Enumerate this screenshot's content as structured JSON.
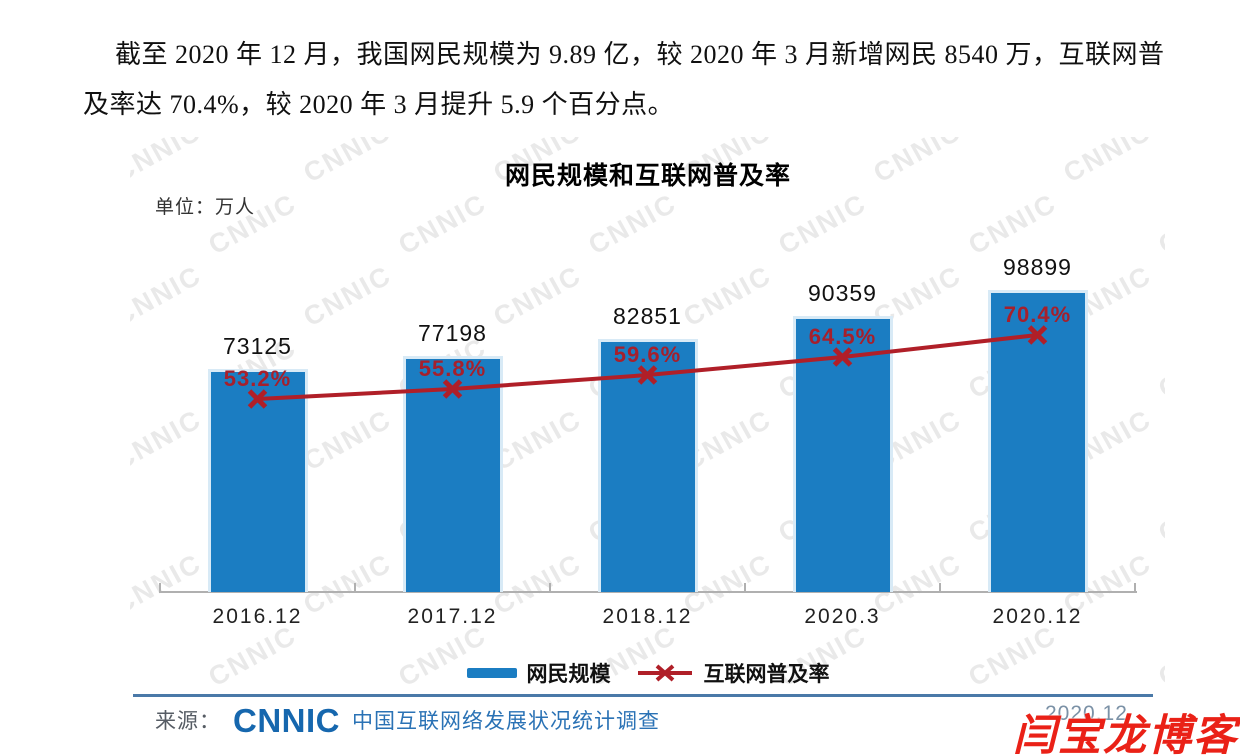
{
  "intro": {
    "lines": [
      "截至 2020 年 12 月，我国网民规模为 9.89 亿，较 2020 年 3 月新增网民 8540 万，互联网普",
      "及率达 70.4%，较 2020 年 3 月提升 5.9 个百分点。"
    ]
  },
  "chart_data": {
    "type": "bar",
    "title": "网民规模和互联网普及率",
    "unit_label": "单位：万人",
    "categories": [
      "2016.12",
      "2017.12",
      "2018.12",
      "2020.3",
      "2020.12"
    ],
    "series": [
      {
        "name": "网民规模",
        "type": "bar",
        "unit": "万人",
        "values": [
          73125,
          77198,
          82851,
          90359,
          98899
        ],
        "color": "#1b7dc2"
      },
      {
        "name": "互联网普及率",
        "type": "line",
        "unit": "%",
        "values": [
          53.2,
          55.8,
          59.6,
          64.5,
          70.4
        ],
        "color": "#b01f28",
        "marker": "x",
        "label_color": "#a6202c"
      }
    ],
    "legend_position": "bottom",
    "y_axis": "hidden",
    "grid": false
  },
  "footer": {
    "source_prefix": "来源：",
    "source_logo": "CNNIC",
    "source_text": "中国互联网络发展状况统计调查",
    "date": "2020.12",
    "watermark_red": "闫宝龙博客"
  },
  "background_watermark": {
    "text": "CNNIC"
  },
  "colors": {
    "bar": "#1b7dc2",
    "line": "#b01f28",
    "pct_label": "#a6202c",
    "rule": "#4a79a8",
    "logo_blue": "#1667ae",
    "source_blue": "#2a72b5",
    "date_gray": "#7b91a6",
    "red_watermark": "#ea2117",
    "watermark_gray": "#e9e9e9"
  }
}
